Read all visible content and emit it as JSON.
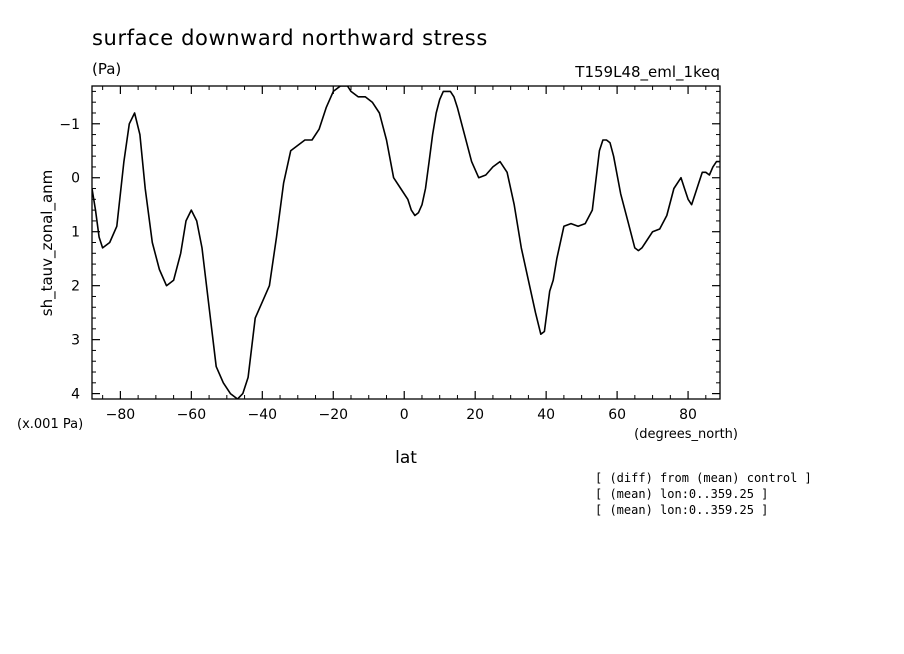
{
  "chart_data": {
    "type": "line",
    "title": "surface downward northward stress",
    "units": "(Pa)",
    "run_label": "T159L48_eml_1keq",
    "ylabel": "sh_tauv_zonal_anm",
    "xlabel": "lat",
    "xlabel_units": "(degrees_north)",
    "y_scale_label": "(x.001 Pa)",
    "xlim": [
      -88,
      89
    ],
    "ylim": [
      4.1,
      -1.7
    ],
    "y_inverted": true,
    "xticks": [
      -80,
      -60,
      -40,
      -20,
      0,
      20,
      40,
      60,
      80
    ],
    "xtick_labels": [
      "−80",
      "−60",
      "−40",
      "−20",
      "0",
      "20",
      "40",
      "60",
      "80"
    ],
    "yticks": [
      -1,
      0,
      1,
      2,
      3,
      4
    ],
    "ytick_labels": [
      "−1",
      "0",
      "1",
      "2",
      "3",
      "4"
    ],
    "grid": false,
    "series": [
      {
        "x": [
          -88,
          -87,
          -86,
          -85,
          -83,
          -81,
          -79,
          -77.5,
          -76,
          -74.5,
          -73,
          -71,
          -69,
          -67,
          -65,
          -63,
          -61.5,
          -60,
          -58.5,
          -57,
          -55,
          -53,
          -51,
          -49,
          -47,
          -45.5,
          -44,
          -42,
          -40,
          -38,
          -36,
          -34,
          -32,
          -30,
          -28,
          -26,
          -24,
          -22,
          -20,
          -18,
          -17,
          -16,
          -15,
          -13,
          -11,
          -9,
          -7,
          -5,
          -3,
          -1,
          1,
          2,
          3,
          4,
          5,
          6,
          7,
          8,
          9,
          10,
          11,
          12,
          13,
          14,
          15,
          17,
          19,
          21,
          23,
          25,
          27,
          29,
          31,
          33,
          35,
          37,
          38.5,
          39.5,
          41,
          42,
          43,
          45,
          47,
          49,
          51,
          53,
          55,
          56,
          57,
          58,
          59,
          61,
          63,
          65,
          66,
          67,
          68,
          70,
          72,
          74,
          76,
          78,
          79,
          80,
          81,
          82,
          83,
          84,
          85,
          86,
          87,
          88,
          89
        ],
        "y": [
          0.2,
          0.6,
          1.1,
          1.3,
          1.2,
          0.9,
          -0.3,
          -1.0,
          -1.2,
          -0.8,
          0.2,
          1.2,
          1.7,
          2.0,
          1.9,
          1.4,
          0.8,
          0.6,
          0.8,
          1.3,
          2.4,
          3.5,
          3.8,
          4.0,
          4.1,
          4.0,
          3.7,
          2.6,
          2.3,
          2.0,
          1.1,
          0.1,
          -0.5,
          -0.6,
          -0.7,
          -0.7,
          -0.9,
          -1.3,
          -1.6,
          -1.7,
          -1.7,
          -1.7,
          -1.6,
          -1.5,
          -1.5,
          -1.4,
          -1.2,
          -0.7,
          0.0,
          0.2,
          0.4,
          0.6,
          0.7,
          0.65,
          0.5,
          0.2,
          -0.3,
          -0.8,
          -1.2,
          -1.45,
          -1.6,
          -1.6,
          -1.6,
          -1.5,
          -1.3,
          -0.8,
          -0.3,
          0.0,
          -0.05,
          -0.2,
          -0.3,
          -0.1,
          0.5,
          1.3,
          1.9,
          2.5,
          2.9,
          2.85,
          2.1,
          1.9,
          1.5,
          0.9,
          0.85,
          0.9,
          0.85,
          0.6,
          -0.5,
          -0.7,
          -0.7,
          -0.65,
          -0.4,
          0.3,
          0.8,
          1.3,
          1.35,
          1.3,
          1.2,
          1.0,
          0.95,
          0.7,
          0.2,
          0.0,
          0.2,
          0.4,
          0.5,
          0.3,
          0.1,
          -0.1,
          -0.1,
          -0.05,
          -0.2,
          -0.3,
          -0.3
        ]
      }
    ]
  },
  "notes": [
    "[ (diff) from (mean) control ]",
    "[ (mean) lon:0..359.25 ]",
    "[ (mean) lon:0..359.25 ]"
  ]
}
